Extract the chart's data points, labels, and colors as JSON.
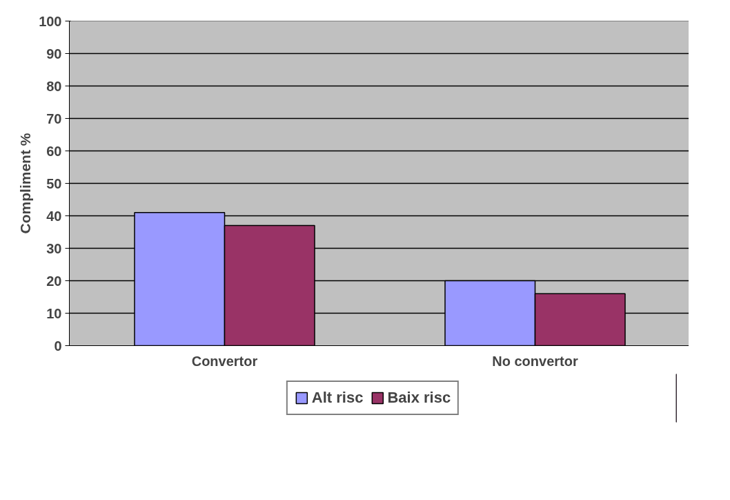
{
  "chart_data": {
    "type": "bar",
    "ylabel": "Compliment %",
    "categories": [
      "Convertor",
      "No convertor"
    ],
    "series": [
      {
        "name": "Alt risc",
        "color": "#9999ff",
        "values": [
          41,
          20
        ]
      },
      {
        "name": "Baix risc",
        "color": "#993366",
        "values": [
          37,
          16
        ]
      }
    ],
    "ylim": [
      0,
      100
    ],
    "yticks": [
      0,
      10,
      20,
      30,
      40,
      50,
      60,
      70,
      80,
      90,
      100
    ],
    "grid": "y",
    "legend": "bottom"
  }
}
